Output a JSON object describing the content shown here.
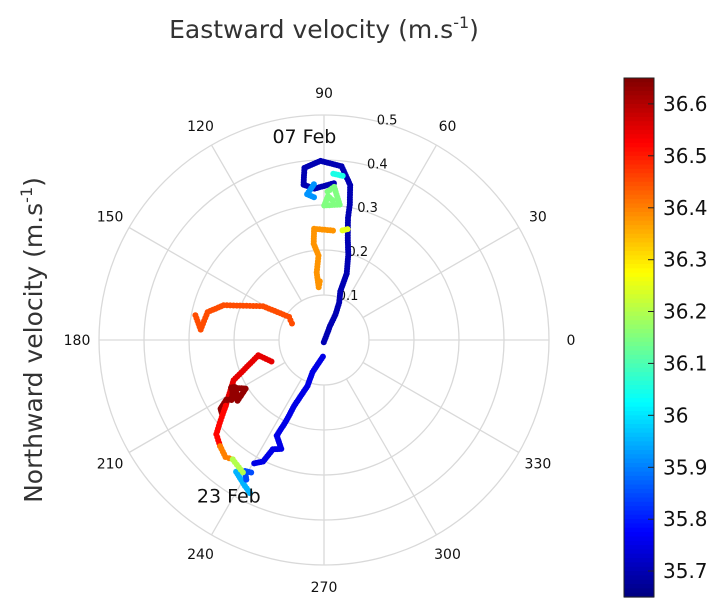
{
  "chart_data": {
    "type": "scatter",
    "coordinate_system": "polar",
    "title": "Eastward velocity (m.s-1)",
    "ylabel": "Northward velocity (m.s-1)",
    "label_unit_superscript": "-1",
    "angle_ticks": [
      "0",
      "30",
      "60",
      "90",
      "120",
      "150",
      "180",
      "210",
      "240",
      "270",
      "300",
      "330"
    ],
    "radial_ticks": [
      "0.1",
      "0.2",
      "0.3",
      "0.4",
      "0.5"
    ],
    "radial_lim": [
      0,
      0.5
    ],
    "grid": true,
    "annotations": [
      {
        "text": "07 Feb",
        "angle": 95.5,
        "r": 0.455
      },
      {
        "text": "23 Feb",
        "angle": 238.5,
        "r": 0.405
      }
    ],
    "colorbar": {
      "colormap": "jet",
      "range": [
        35.65,
        36.65
      ],
      "ticks": [
        "35.7",
        "35.8",
        "35.9",
        "36",
        "36.1",
        "36.2",
        "36.3",
        "36.4",
        "36.5",
        "36.6"
      ],
      "location": "right"
    },
    "track_segments": [
      {
        "name": "",
        "value": 35.7,
        "path": [
          [
            265.9,
            0.005
          ],
          [
            66.8,
            0.034
          ],
          [
            65.8,
            0.062
          ],
          [
            67.9,
            0.09
          ],
          [
            71.5,
            0.114
          ],
          [
            71.1,
            0.156
          ],
          [
            74.2,
            0.198
          ],
          [
            76.9,
            0.233
          ],
          [
            78.9,
            0.277
          ],
          [
            79.2,
            0.306
          ],
          [
            80.4,
            0.349
          ],
          [
            84.2,
            0.388
          ],
          [
            91.1,
            0.398
          ],
          [
            96.5,
            0.385
          ],
          [
            97.5,
            0.348
          ],
          [
            93.6,
            0.337
          ],
          [
            86.4,
            0.349
          ]
        ],
        "step": 0.0055
      },
      {
        "name": "",
        "value": 35.75,
        "path": [
          [
            266.2,
            0.037
          ],
          [
            250.3,
            0.076
          ],
          [
            250.3,
            0.108
          ],
          [
            245.6,
            0.161
          ],
          [
            245.0,
            0.197
          ],
          [
            243.7,
            0.237
          ],
          [
            248.6,
            0.26
          ],
          [
            244.9,
            0.268
          ],
          [
            243.4,
            0.302
          ],
          [
            240.5,
            0.315
          ]
        ],
        "step": 0.005
      },
      {
        "name": "",
        "value": 35.95,
        "path": [
          [
            236.3,
            0.352
          ],
          [
            241.6,
            0.369
          ],
          [
            244.2,
            0.378
          ]
        ],
        "step": 0.0055
      },
      {
        "name": "",
        "value": 35.85,
        "path": [
          [
            241.2,
            0.336
          ],
          [
            238.9,
            0.34
          ],
          [
            240.9,
            0.355
          ]
        ],
        "step": 0.005
      },
      {
        "name": "",
        "value": 36.05,
        "path": [
          [
            83.5,
            0.367
          ],
          [
            86.8,
            0.37
          ]
        ],
        "step": 0.006
      },
      {
        "name": "",
        "value": 35.92,
        "path": [
          [
            93.7,
            0.347
          ],
          [
            96.6,
            0.326
          ],
          [
            94.0,
            0.318
          ]
        ],
        "step": 0.006
      },
      {
        "name": "",
        "value": 36.15,
        "path": [
          [
            88.6,
            0.33
          ],
          [
            86.2,
            0.341
          ],
          [
            83.4,
            0.303
          ],
          [
            89.9,
            0.299
          ],
          [
            88.4,
            0.32
          ],
          [
            86.3,
            0.31
          ]
        ],
        "step": 0.006
      },
      {
        "name": "",
        "value": 36.25,
        "path": [
          [
            80.4,
            0.247
          ],
          [
            78.0,
            0.252
          ]
        ],
        "step": 0.007
      },
      {
        "name": "",
        "value": 36.38,
        "path": [
          [
            85.3,
            0.244
          ],
          [
            95.1,
            0.248
          ],
          [
            96.1,
            0.215
          ],
          [
            93.7,
            0.188
          ],
          [
            96.2,
            0.151
          ],
          [
            95.7,
            0.118
          ],
          [
            94.1,
            0.131
          ]
        ],
        "step": 0.006
      },
      {
        "name": "",
        "value": 36.45,
        "path": [
          [
            152.8,
            0.08
          ],
          [
            146.5,
            0.093
          ],
          [
            151.0,
            0.155
          ],
          [
            160.9,
            0.236
          ],
          [
            166.5,
            0.266
          ],
          [
            175.2,
            0.275
          ],
          [
            169.1,
            0.291
          ]
        ],
        "step": 0.007
      },
      {
        "name": "",
        "value": 36.55,
        "path": [
          [
            202.3,
            0.126
          ],
          [
            193.1,
            0.15
          ],
          [
            204.0,
            0.22
          ],
          [
            213.8,
            0.263
          ]
        ],
        "step": 0.006
      },
      {
        "name": "",
        "value": 36.63,
        "path": [
          [
            208.4,
            0.224
          ],
          [
            211.8,
            0.205
          ],
          [
            215.1,
            0.235
          ],
          [
            207.1,
            0.232
          ],
          [
            207.8,
            0.224
          ],
          [
            213.0,
            0.23
          ],
          [
            209.8,
            0.234
          ],
          [
            213.0,
            0.245
          ],
          [
            211.4,
            0.254
          ],
          [
            213.6,
            0.276
          ],
          [
            216.1,
            0.28
          ],
          [
            213.8,
            0.263
          ]
        ],
        "step": 0.005
      },
      {
        "name": "",
        "value": 36.52,
        "path": [
          [
            213.8,
            0.263
          ],
          [
            218.5,
            0.296
          ],
          [
            221.2,
            0.318
          ],
          [
            225.6,
            0.33
          ]
        ],
        "step": 0.007
      },
      {
        "name": "",
        "value": 36.4,
        "path": [
          [
            225.6,
            0.33
          ],
          [
            229.9,
            0.34
          ],
          [
            232.6,
            0.334
          ]
        ],
        "step": 0.007
      },
      {
        "name": "",
        "value": 36.2,
        "path": [
          [
            232.6,
            0.334
          ],
          [
            238.5,
            0.345
          ]
        ],
        "step": 0.007
      }
    ]
  }
}
